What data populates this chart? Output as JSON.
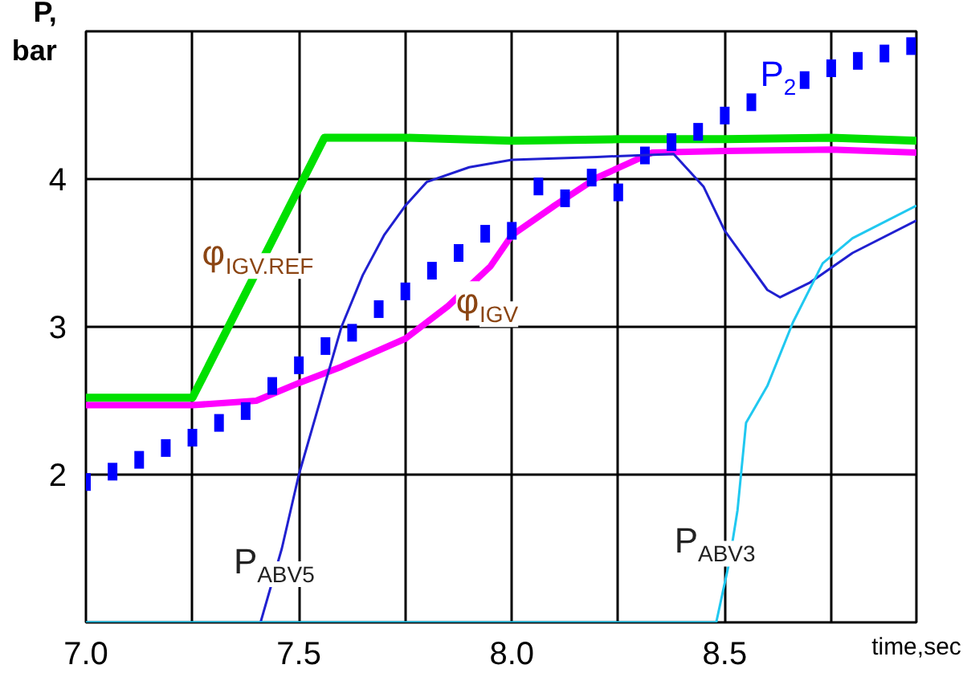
{
  "chart_data": {
    "type": "line",
    "xlabel": "time,sec",
    "ylabel": "P, bar",
    "xlim": [
      7.0,
      8.95
    ],
    "ylim": [
      1,
      5
    ],
    "xticks": [
      {
        "value": 7.0,
        "label": "7.0"
      },
      {
        "value": 7.25,
        "label": null
      },
      {
        "value": 7.5,
        "label": "7.5"
      },
      {
        "value": 7.75,
        "label": null
      },
      {
        "value": 8.0,
        "label": "8.0"
      },
      {
        "value": 8.25,
        "label": null
      },
      {
        "value": 8.5,
        "label": "8.5"
      },
      {
        "value": 8.75,
        "label": null
      }
    ],
    "yticks": [
      {
        "value": 1,
        "label": null
      },
      2,
      3,
      4,
      {
        "value": 5,
        "label": null
      }
    ],
    "grid": true,
    "line_style": "solid",
    "series": [
      {
        "name": "φ$_{IGV.REF}$",
        "color": "#00e000",
        "x": [
          7.0,
          7.25,
          7.56,
          7.75,
          8.0,
          8.25,
          8.5,
          8.75,
          8.95
        ],
        "values": [
          2.52,
          2.52,
          4.28,
          4.28,
          4.26,
          4.27,
          4.27,
          4.28,
          4.26
        ]
      },
      {
        "name": "φ$_{IGV}$",
        "color": "#ff00ff",
        "x": [
          7.0,
          7.25,
          7.4,
          7.5,
          7.6,
          7.75,
          7.85,
          7.95,
          8.0,
          8.1,
          8.2,
          8.33,
          8.5,
          8.75,
          8.95
        ],
        "values": [
          2.47,
          2.47,
          2.5,
          2.62,
          2.73,
          2.92,
          3.14,
          3.41,
          3.62,
          3.82,
          4.01,
          4.18,
          4.19,
          4.2,
          4.18
        ]
      },
      {
        "name": "P$_{2}$",
        "color": "#0000ff",
        "type": "scatter",
        "marker": "square",
        "x": [
          7.0,
          7.0625,
          7.125,
          7.1875,
          7.25,
          7.3125,
          7.375,
          7.4375,
          7.5,
          7.5625,
          7.625,
          7.6875,
          7.75,
          7.8125,
          7.875,
          7.9375,
          8.0,
          8.0625,
          8.125,
          8.1875,
          8.25,
          8.3125,
          8.375,
          8.4375,
          8.5,
          8.5625,
          8.6875,
          8.75,
          8.8125,
          8.875,
          8.9375
        ],
        "values": [
          1.95,
          2.02,
          2.1,
          2.18,
          2.25,
          2.35,
          2.43,
          2.6,
          2.74,
          2.87,
          2.96,
          3.12,
          3.24,
          3.38,
          3.5,
          3.63,
          3.65,
          3.95,
          3.87,
          4.01,
          3.91,
          4.16,
          4.25,
          4.32,
          4.43,
          4.52,
          4.67,
          4.75,
          4.8,
          4.85,
          4.9
        ]
      },
      {
        "name": "P$_{ABV5}$",
        "color": "#2020d0",
        "x": [
          7.41,
          7.46,
          7.5,
          7.55,
          7.6,
          7.65,
          7.7,
          7.75,
          7.8,
          7.9,
          8.0,
          8.2,
          8.38,
          8.45,
          8.5,
          8.55,
          8.6,
          8.63,
          8.7,
          8.8,
          8.95
        ],
        "values": [
          1.0,
          1.5,
          2.0,
          2.5,
          3.0,
          3.35,
          3.62,
          3.82,
          3.98,
          4.08,
          4.13,
          4.15,
          4.17,
          3.95,
          3.65,
          3.45,
          3.25,
          3.2,
          3.3,
          3.5,
          3.72
        ]
      },
      {
        "name": "P$_{ABV3}$",
        "color": "#20c8f0",
        "x": [
          7.0,
          8.48,
          8.51,
          8.53,
          8.55,
          8.6,
          8.66,
          8.73,
          8.8,
          8.95
        ],
        "values": [
          1.0,
          1.0,
          1.4,
          1.76,
          2.35,
          2.6,
          3.03,
          3.43,
          3.6,
          3.82
        ]
      }
    ]
  }
}
